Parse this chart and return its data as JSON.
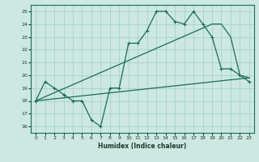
{
  "title": "",
  "xlabel": "Humidex (Indice chaleur)",
  "ylabel": "",
  "bg_color": "#cce8e0",
  "grid_color": "#9ecfc4",
  "line_color": "#1a6b5a",
  "xlim": [
    -0.5,
    23.5
  ],
  "ylim": [
    15.5,
    25.5
  ],
  "yticks": [
    16,
    17,
    18,
    19,
    20,
    21,
    22,
    23,
    24,
    25
  ],
  "xticks": [
    0,
    1,
    2,
    3,
    4,
    5,
    6,
    7,
    8,
    9,
    10,
    11,
    12,
    13,
    14,
    15,
    16,
    17,
    18,
    19,
    20,
    21,
    22,
    23
  ],
  "line1_x": [
    0,
    1,
    2,
    3,
    3,
    4,
    5,
    6,
    7,
    8,
    9,
    10,
    11,
    12,
    13,
    14,
    15,
    16,
    17,
    18,
    19,
    20,
    21,
    22,
    23
  ],
  "line1_y": [
    18.0,
    19.5,
    19.0,
    18.5,
    18.5,
    18.0,
    18.0,
    16.5,
    16.0,
    19.0,
    19.0,
    22.5,
    22.5,
    23.5,
    25.0,
    25.0,
    24.2,
    24.0,
    25.0,
    24.0,
    23.0,
    20.5,
    20.5,
    20.0,
    19.5
  ],
  "line2_x": [
    0,
    23
  ],
  "line2_y": [
    18.0,
    19.8
  ],
  "line3_x": [
    0,
    19
  ],
  "line3_y": [
    18.0,
    24.0
  ],
  "line4_x": [
    0,
    19,
    20,
    21,
    22,
    23
  ],
  "line4_y": [
    18.0,
    24.0,
    24.0,
    23.0,
    20.0,
    19.8
  ]
}
